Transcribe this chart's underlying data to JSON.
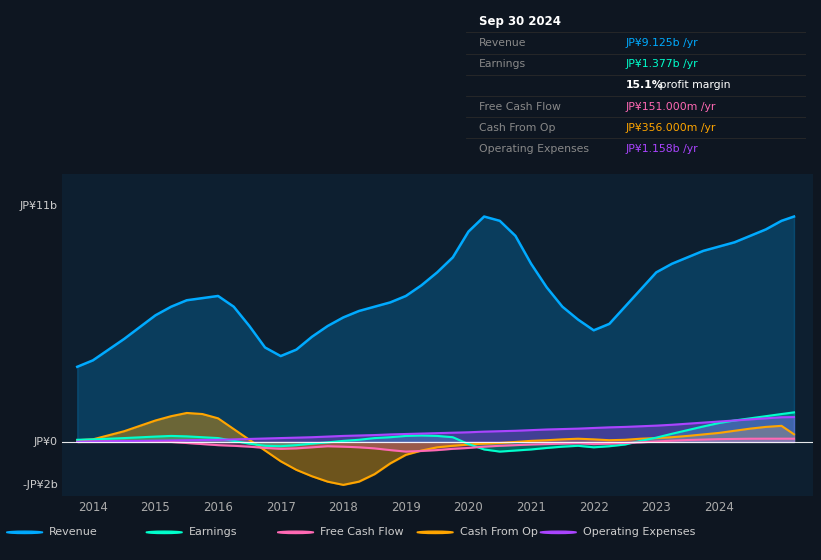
{
  "bg_color": "#0e1621",
  "plot_bg_color": "#0d1f30",
  "xlim": [
    2013.5,
    2025.5
  ],
  "ylim": [
    -2.5,
    12.5
  ],
  "xticks": [
    2014,
    2015,
    2016,
    2017,
    2018,
    2019,
    2020,
    2021,
    2022,
    2023,
    2024
  ],
  "revenue_color": "#00aaff",
  "earnings_color": "#00ffcc",
  "fcf_color": "#ff69b4",
  "cashfromop_color": "#ffa500",
  "opex_color": "#aa44ff",
  "revenue_x": [
    2013.75,
    2014.0,
    2014.5,
    2015.0,
    2015.25,
    2015.5,
    2015.75,
    2016.0,
    2016.25,
    2016.5,
    2016.75,
    2017.0,
    2017.25,
    2017.5,
    2017.75,
    2018.0,
    2018.25,
    2018.5,
    2018.75,
    2019.0,
    2019.25,
    2019.5,
    2019.75,
    2020.0,
    2020.25,
    2020.5,
    2020.75,
    2021.0,
    2021.25,
    2021.5,
    2021.75,
    2022.0,
    2022.25,
    2022.5,
    2022.75,
    2023.0,
    2023.25,
    2023.5,
    2023.75,
    2024.0,
    2024.25,
    2024.5,
    2024.75,
    2025.0,
    2025.2
  ],
  "revenue_y": [
    3.5,
    3.8,
    4.8,
    5.9,
    6.3,
    6.6,
    6.7,
    6.8,
    6.3,
    5.4,
    4.4,
    4.0,
    4.3,
    4.9,
    5.4,
    5.8,
    6.1,
    6.3,
    6.5,
    6.8,
    7.3,
    7.9,
    8.6,
    9.8,
    10.5,
    10.3,
    9.6,
    8.3,
    7.2,
    6.3,
    5.7,
    5.2,
    5.5,
    6.3,
    7.1,
    7.9,
    8.3,
    8.6,
    8.9,
    9.1,
    9.3,
    9.6,
    9.9,
    10.3,
    10.5
  ],
  "earnings_x": [
    2013.75,
    2014.0,
    2014.5,
    2015.0,
    2015.25,
    2015.5,
    2015.75,
    2016.0,
    2016.25,
    2016.5,
    2016.75,
    2017.0,
    2017.25,
    2017.5,
    2017.75,
    2018.0,
    2018.25,
    2018.5,
    2018.75,
    2019.0,
    2019.25,
    2019.5,
    2019.75,
    2020.0,
    2020.25,
    2020.5,
    2020.75,
    2021.0,
    2021.25,
    2021.5,
    2021.75,
    2022.0,
    2022.25,
    2022.5,
    2022.75,
    2023.0,
    2023.25,
    2023.5,
    2023.75,
    2024.0,
    2024.25,
    2024.5,
    2024.75,
    2025.0,
    2025.2
  ],
  "earnings_y": [
    0.1,
    0.12,
    0.18,
    0.25,
    0.28,
    0.26,
    0.22,
    0.18,
    0.05,
    -0.08,
    -0.18,
    -0.2,
    -0.15,
    -0.08,
    -0.02,
    0.05,
    0.1,
    0.18,
    0.22,
    0.28,
    0.3,
    0.28,
    0.22,
    -0.1,
    -0.35,
    -0.45,
    -0.4,
    -0.35,
    -0.28,
    -0.22,
    -0.18,
    -0.25,
    -0.2,
    -0.12,
    0.05,
    0.2,
    0.38,
    0.55,
    0.72,
    0.88,
    1.0,
    1.1,
    1.2,
    1.3,
    1.377
  ],
  "fcf_x": [
    2013.75,
    2014.0,
    2014.5,
    2015.0,
    2015.25,
    2015.5,
    2015.75,
    2016.0,
    2016.25,
    2016.5,
    2016.75,
    2017.0,
    2017.25,
    2017.5,
    2017.75,
    2018.0,
    2018.25,
    2018.5,
    2018.75,
    2019.0,
    2019.25,
    2019.5,
    2019.75,
    2020.0,
    2020.25,
    2020.5,
    2020.75,
    2021.0,
    2021.25,
    2021.5,
    2021.75,
    2022.0,
    2022.25,
    2022.5,
    2022.75,
    2023.0,
    2023.25,
    2023.5,
    2023.75,
    2024.0,
    2024.25,
    2024.5,
    2024.75,
    2025.0,
    2025.2
  ],
  "fcf_y": [
    0.0,
    0.02,
    0.05,
    0.03,
    0.0,
    -0.05,
    -0.1,
    -0.15,
    -0.18,
    -0.22,
    -0.28,
    -0.32,
    -0.3,
    -0.25,
    -0.2,
    -0.22,
    -0.25,
    -0.3,
    -0.38,
    -0.45,
    -0.42,
    -0.38,
    -0.32,
    -0.28,
    -0.22,
    -0.18,
    -0.15,
    -0.12,
    -0.1,
    -0.08,
    -0.06,
    -0.1,
    -0.08,
    -0.05,
    -0.02,
    0.02,
    0.06,
    0.09,
    0.11,
    0.13,
    0.14,
    0.15,
    0.151,
    0.151,
    0.151
  ],
  "cashfromop_x": [
    2013.75,
    2014.0,
    2014.5,
    2015.0,
    2015.25,
    2015.5,
    2015.75,
    2016.0,
    2016.25,
    2016.5,
    2016.75,
    2017.0,
    2017.25,
    2017.5,
    2017.75,
    2018.0,
    2018.25,
    2018.5,
    2018.75,
    2019.0,
    2019.25,
    2019.5,
    2019.75,
    2020.0,
    2020.25,
    2020.5,
    2020.75,
    2021.0,
    2021.25,
    2021.5,
    2021.75,
    2022.0,
    2022.25,
    2022.5,
    2022.75,
    2023.0,
    2023.25,
    2023.5,
    2023.75,
    2024.0,
    2024.25,
    2024.5,
    2024.75,
    2025.0,
    2025.2
  ],
  "cashfromop_y": [
    0.08,
    0.12,
    0.5,
    1.0,
    1.2,
    1.35,
    1.3,
    1.1,
    0.6,
    0.1,
    -0.4,
    -0.9,
    -1.3,
    -1.6,
    -1.85,
    -2.0,
    -1.85,
    -1.5,
    -1.0,
    -0.6,
    -0.4,
    -0.25,
    -0.18,
    -0.12,
    -0.08,
    -0.05,
    0.0,
    0.05,
    0.08,
    0.12,
    0.15,
    0.12,
    0.08,
    0.1,
    0.15,
    0.18,
    0.22,
    0.28,
    0.35,
    0.42,
    0.52,
    0.62,
    0.7,
    0.75,
    0.356
  ],
  "opex_x": [
    2013.75,
    2014.0,
    2014.5,
    2015.0,
    2015.25,
    2015.5,
    2015.75,
    2016.0,
    2016.25,
    2016.5,
    2016.75,
    2017.0,
    2017.25,
    2017.5,
    2017.75,
    2018.0,
    2018.25,
    2018.5,
    2018.75,
    2019.0,
    2019.25,
    2019.5,
    2019.75,
    2020.0,
    2020.25,
    2020.5,
    2020.75,
    2021.0,
    2021.25,
    2021.5,
    2021.75,
    2022.0,
    2022.25,
    2022.5,
    2022.75,
    2023.0,
    2023.25,
    2023.5,
    2023.75,
    2024.0,
    2024.25,
    2024.5,
    2024.75,
    2025.0,
    2025.2
  ],
  "opex_y": [
    0.0,
    0.02,
    0.04,
    0.06,
    0.07,
    0.08,
    0.09,
    0.1,
    0.12,
    0.14,
    0.16,
    0.18,
    0.2,
    0.22,
    0.25,
    0.28,
    0.3,
    0.32,
    0.35,
    0.37,
    0.39,
    0.41,
    0.43,
    0.45,
    0.48,
    0.5,
    0.52,
    0.55,
    0.58,
    0.6,
    0.62,
    0.65,
    0.68,
    0.7,
    0.73,
    0.76,
    0.8,
    0.85,
    0.9,
    0.95,
    1.0,
    1.05,
    1.1,
    1.15,
    1.158
  ],
  "legend": [
    {
      "label": "Revenue",
      "color": "#00aaff"
    },
    {
      "label": "Earnings",
      "color": "#00ffcc"
    },
    {
      "label": "Free Cash Flow",
      "color": "#ff69b4"
    },
    {
      "label": "Cash From Op",
      "color": "#ffa500"
    },
    {
      "label": "Operating Expenses",
      "color": "#aa44ff"
    }
  ]
}
